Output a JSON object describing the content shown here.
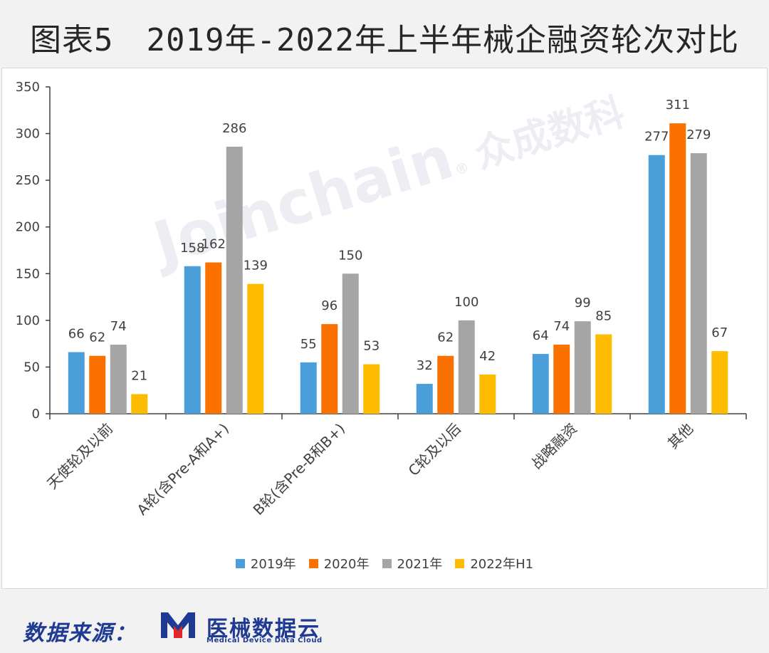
{
  "title": {
    "figure_label": "图表5",
    "text": "2019年-2022年上半年械企融资轮次对比"
  },
  "watermark": {
    "latin": "Joinchain",
    "reg": "®",
    "cn": "众成数科"
  },
  "footer": {
    "source_label": "数据来源：",
    "brand_cn": "医械数据云",
    "brand_en": "Medical Device Data Cloud"
  },
  "colors": {
    "2019年": "#4a9fdb",
    "2020年": "#fb7100",
    "2021年": "#a5a5a5",
    "2022年H1": "#fdbc00",
    "brand": "#1f3a93",
    "brand_accent": "#e0262a"
  },
  "chart_data": {
    "type": "bar",
    "title": "2019年-2022年上半年械企融资轮次对比",
    "xlabel": "",
    "ylabel": "",
    "ylim": [
      0,
      350
    ],
    "yticks": [
      0,
      50,
      100,
      150,
      200,
      250,
      300,
      350
    ],
    "grid": false,
    "legend_position": "bottom",
    "categories": [
      "天使轮及以前",
      "A轮(含Pre-A和A+)",
      "B轮(含Pre-B和B+)",
      "C轮及以后",
      "战略融资",
      "其他"
    ],
    "series": [
      {
        "name": "2019年",
        "values": [
          66,
          158,
          55,
          32,
          64,
          277
        ]
      },
      {
        "name": "2020年",
        "values": [
          62,
          162,
          96,
          62,
          74,
          311
        ]
      },
      {
        "name": "2021年",
        "values": [
          74,
          286,
          150,
          100,
          99,
          279
        ]
      },
      {
        "name": "2022年H1",
        "values": [
          21,
          139,
          53,
          42,
          85,
          67
        ]
      }
    ]
  }
}
